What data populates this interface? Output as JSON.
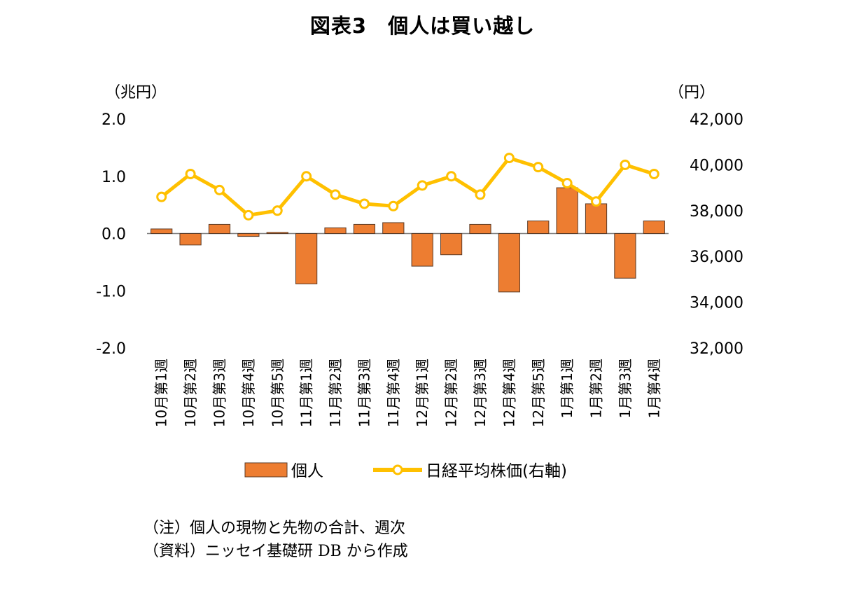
{
  "title": "図表3　個人は買い越し",
  "chart_data": {
    "type": "bar+line",
    "categories": [
      "10月第1週",
      "10月第2週",
      "10月第3週",
      "10月第4週",
      "10月第5週",
      "11月第1週",
      "11月第2週",
      "11月第3週",
      "11月第4週",
      "12月第1週",
      "12月第2週",
      "12月第3週",
      "12月第4週",
      "12月第5週",
      "1月第1週",
      "1月第2週",
      "1月第3週",
      "1月第4週"
    ],
    "series": [
      {
        "name": "個人",
        "kind": "bar",
        "axis": "left",
        "color": "#ED7D31",
        "values": [
          0.08,
          -0.2,
          0.16,
          -0.05,
          0.02,
          -0.88,
          0.1,
          0.16,
          0.19,
          -0.57,
          -0.37,
          0.16,
          -1.02,
          0.22,
          0.8,
          0.52,
          -0.78,
          0.22
        ]
      },
      {
        "name": "日経平均株価(右軸)",
        "kind": "line",
        "axis": "right",
        "color": "#FFC000",
        "values": [
          38600,
          39600,
          38900,
          37800,
          38000,
          39500,
          38700,
          38300,
          38200,
          39100,
          39500,
          38700,
          40300,
          39900,
          39200,
          38400,
          40000,
          39600
        ]
      }
    ],
    "y_left": {
      "label": "（兆円）",
      "range": [
        -2.0,
        2.0
      ],
      "ticks": [
        "2.0",
        "1.0",
        "0.0",
        "-1.0",
        "-2.0"
      ]
    },
    "y_right": {
      "label": "（円）",
      "range": [
        32000,
        42000
      ],
      "ticks": [
        "42,000",
        "40,000",
        "38,000",
        "36,000",
        "34,000",
        "32,000"
      ]
    },
    "grid": false,
    "legend_position": "bottom"
  },
  "notes": [
    "（注）個人の現物と先物の合計、週次",
    "（資料）ニッセイ基礎研 DB から作成"
  ],
  "colors": {
    "bar": "#ED7D31",
    "bar_stroke": "#5a3a26",
    "line": "#FFC000",
    "marker_fill": "#FFFFFF",
    "axis": "#7f7f7f"
  }
}
